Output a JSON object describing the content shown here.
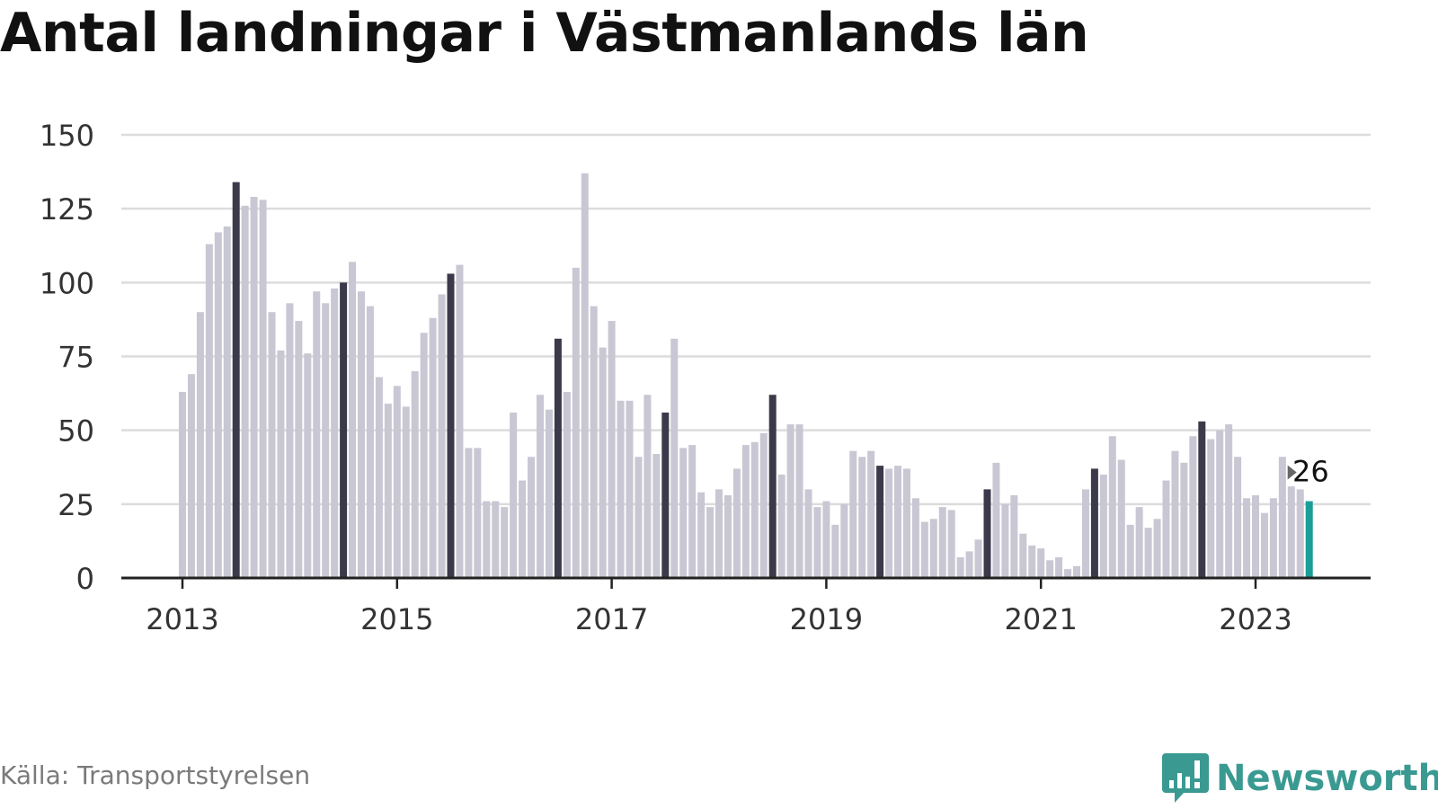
{
  "title": "Antal landningar i Västmanlands län",
  "source": "Källa: Transportstyrelsen",
  "brand": "Newsworthy",
  "colors": {
    "bar": "#c8c7d3",
    "highlight": "#3b3a4a",
    "latest": "#1a9e96",
    "grid": "#dcdcdc",
    "axis": "#222222"
  },
  "chart_data": {
    "type": "bar",
    "title": "Antal landningar i Västmanlands län",
    "xlabel": "",
    "ylabel": "",
    "ylim": [
      0,
      150
    ],
    "yticks": [
      0,
      25,
      50,
      75,
      100,
      125,
      150
    ],
    "xticks": [
      "2013",
      "2015",
      "2017",
      "2019",
      "2021",
      "2023"
    ],
    "start": "2013-01",
    "end": "2023-07",
    "grid": true,
    "highlight_month": "July",
    "annotation": "26",
    "values": [
      63,
      69,
      90,
      113,
      117,
      119,
      134,
      126,
      129,
      128,
      90,
      77,
      93,
      87,
      76,
      97,
      93,
      98,
      100,
      107,
      97,
      92,
      68,
      59,
      65,
      58,
      70,
      83,
      88,
      96,
      103,
      106,
      44,
      44,
      26,
      26,
      24,
      56,
      33,
      41,
      62,
      57,
      81,
      63,
      105,
      137,
      92,
      78,
      87,
      60,
      60,
      41,
      62,
      42,
      56,
      81,
      44,
      45,
      29,
      24,
      30,
      28,
      37,
      45,
      46,
      49,
      62,
      35,
      52,
      52,
      30,
      24,
      26,
      18,
      25,
      43,
      41,
      43,
      38,
      37,
      38,
      37,
      27,
      19,
      20,
      24,
      23,
      7,
      9,
      13,
      30,
      39,
      25,
      28,
      15,
      11,
      10,
      6,
      7,
      3,
      4,
      30,
      37,
      35,
      48,
      40,
      18,
      24,
      17,
      20,
      33,
      43,
      39,
      48,
      53,
      47,
      50,
      52,
      41,
      27,
      28,
      22,
      27,
      41,
      31,
      30,
      26
    ]
  }
}
